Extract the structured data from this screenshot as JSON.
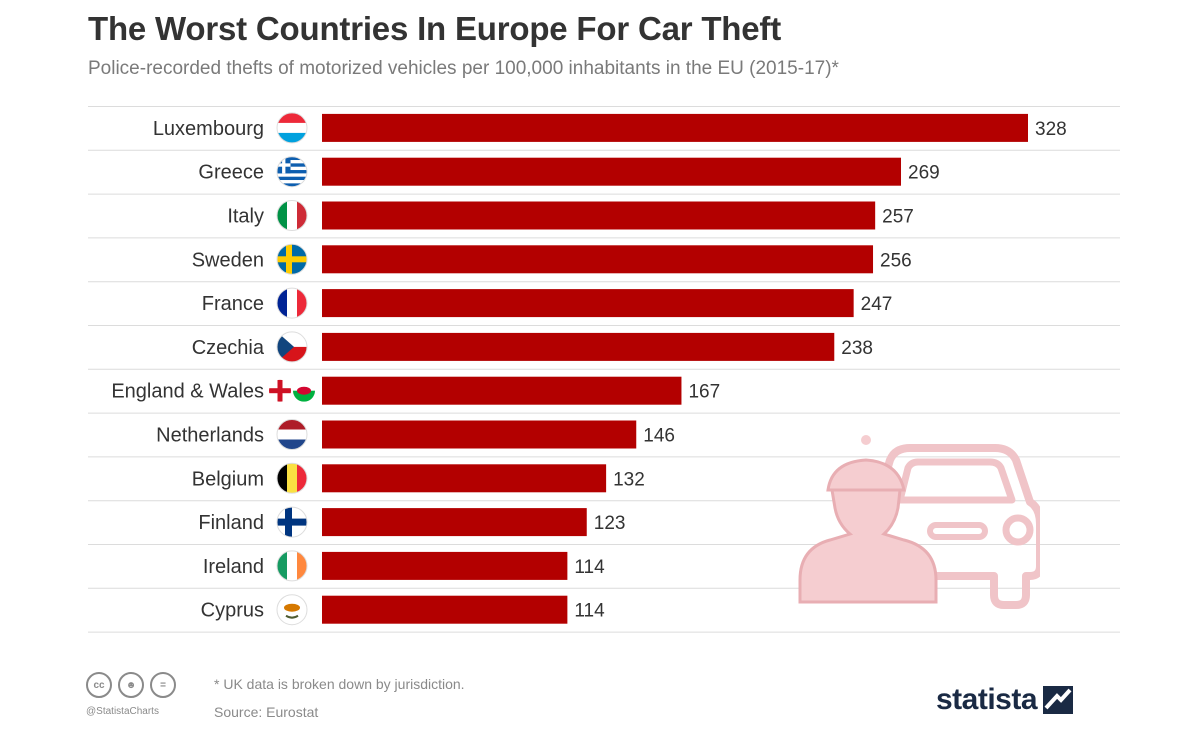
{
  "chart_data": {
    "type": "bar",
    "orientation": "horizontal",
    "title": "The Worst Countries In Europe For Car Theft",
    "subtitle": "Police-recorded thefts of motorized vehicles per 100,000 inhabitants in the EU (2015-17)*",
    "categories": [
      "Luxembourg",
      "Greece",
      "Italy",
      "Sweden",
      "France",
      "Czechia",
      "England & Wales",
      "Netherlands",
      "Belgium",
      "Finland",
      "Ireland",
      "Cyprus"
    ],
    "values": [
      328,
      269,
      257,
      256,
      247,
      238,
      167,
      146,
      132,
      123,
      114,
      114
    ],
    "flag_icons": [
      "luxembourg-flag-icon",
      "greece-flag-icon",
      "italy-flag-icon",
      "sweden-flag-icon",
      "france-flag-icon",
      "czechia-flag-icon",
      "england-wales-flag-icon",
      "netherlands-flag-icon",
      "belgium-flag-icon",
      "finland-flag-icon",
      "ireland-flag-icon",
      "cyprus-flag-icon"
    ],
    "xlim": [
      0,
      328
    ],
    "bar_color": "#b30000",
    "grid": "horizontal",
    "data_labels": true,
    "legend": "none"
  },
  "footer": {
    "note": "* UK data is broken down by jurisdiction.",
    "source": "Source: Eurostat",
    "handle": "@StatistaCharts",
    "license_icons": [
      "cc-icon",
      "by-icon",
      "nd-icon"
    ]
  },
  "brand": {
    "name": "statista",
    "icon": "statista-logo-icon"
  },
  "illustration": {
    "icon": "car-thief-icon",
    "color": "#f2c9cc"
  }
}
